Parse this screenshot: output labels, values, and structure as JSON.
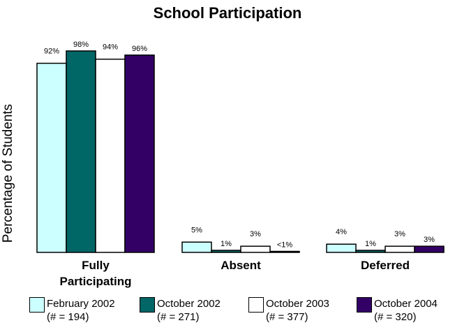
{
  "chart_data": {
    "type": "bar",
    "title": "School Participation",
    "xlabel": "",
    "ylabel": "Percentage of Students",
    "ylim": [
      0,
      100
    ],
    "grid": false,
    "legend_position": "bottom",
    "categories": [
      "Fully Participating",
      "Absent",
      "Deferred"
    ],
    "series": [
      {
        "name": "February 2002",
        "n_label": "(# = 194)",
        "values": [
          92,
          5,
          4
        ],
        "labels": [
          "92%",
          "5%",
          "4%"
        ],
        "color": "#ccffff"
      },
      {
        "name": "October 2002",
        "n_label": "(# = 271)",
        "values": [
          98,
          1,
          1
        ],
        "labels": [
          "98%",
          "1%",
          "1%"
        ],
        "color": "#006666"
      },
      {
        "name": "October 2003",
        "n_label": "(# = 377)",
        "values": [
          94,
          3,
          3
        ],
        "labels": [
          "94%",
          "3%",
          "3%"
        ],
        "color": "#ffffff"
      },
      {
        "name": "October 2004",
        "n_label": "(# = 320)",
        "values": [
          96,
          0.5,
          3
        ],
        "labels": [
          "96%",
          "<1%",
          "3%"
        ],
        "color": "#330066"
      }
    ]
  }
}
